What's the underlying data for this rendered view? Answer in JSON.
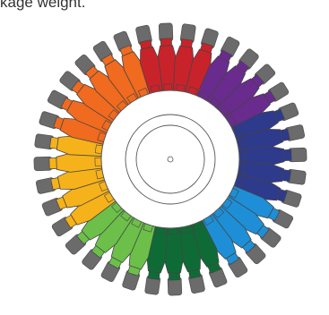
{
  "caption": "kage weight.",
  "wheel": {
    "spoke_count": 36,
    "colors": {
      "gray": "#6b6b6b",
      "outline": "#444444",
      "red": "#c8232a",
      "purple": "#6a2b8e",
      "navy": "#2e3a8c",
      "blue": "#1e8fd6",
      "dark_green": "#0f6b36",
      "light_green": "#6cc04a",
      "yellow": "#f6b21a",
      "orange": "#f06a1f",
      "hub": "#ffffff",
      "hub_stroke": "#555555"
    },
    "sequence": [
      "red",
      "red",
      "red",
      "purple",
      "purple",
      "purple",
      "purple",
      "navy",
      "navy",
      "navy",
      "navy",
      "navy",
      "blue",
      "blue",
      "blue",
      "blue",
      "dark_green",
      "dark_green",
      "dark_green",
      "dark_green",
      "light_green",
      "light_green",
      "light_green",
      "light_green",
      "yellow",
      "yellow",
      "yellow",
      "yellow",
      "yellow",
      "orange",
      "orange",
      "orange",
      "orange",
      "orange",
      "orange",
      "red"
    ]
  }
}
